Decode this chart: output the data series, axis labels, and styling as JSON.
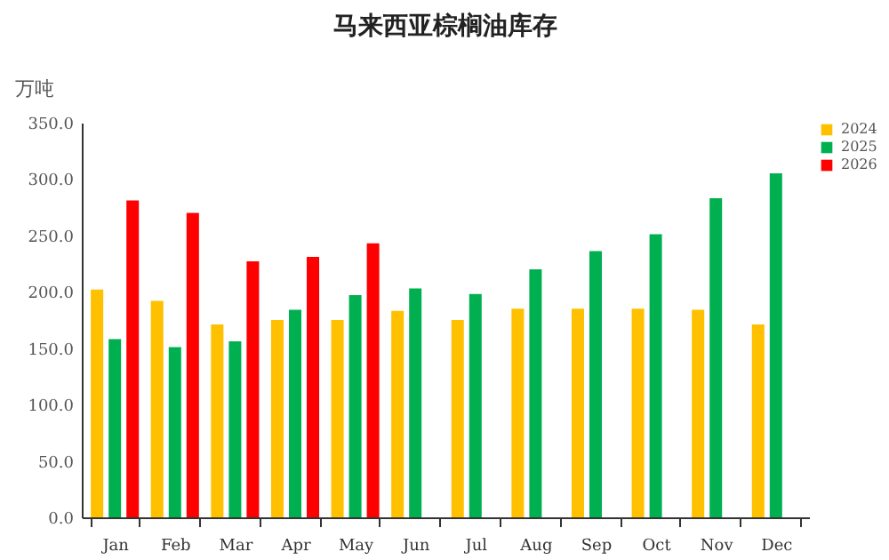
{
  "chart_data": {
    "type": "bar",
    "title": "马来西亚棕榈油库存",
    "ylabel": "万吨",
    "categories": [
      "Jan",
      "Feb",
      "Mar",
      "Apr",
      "May",
      "Jun",
      "Jul",
      "Aug",
      "Sep",
      "Oct",
      "Nov",
      "Dec"
    ],
    "series": [
      {
        "name": "2024",
        "color": "#ffc000",
        "values": [
          202,
          192,
          171,
          175,
          175,
          183,
          175,
          185,
          185,
          185,
          184,
          171
        ]
      },
      {
        "name": "2025",
        "color": "#00b050",
        "values": [
          158,
          151,
          156,
          184,
          197,
          203,
          198,
          220,
          236,
          251,
          283,
          305
        ]
      },
      {
        "name": "2026",
        "color": "#ff0000",
        "values": [
          281,
          270,
          227,
          231,
          243,
          null,
          null,
          null,
          null,
          null,
          null,
          null
        ]
      }
    ],
    "ylim": [
      0,
      350
    ],
    "yticks": [
      {
        "value": 0,
        "label": "0.0"
      },
      {
        "value": 50,
        "label": "50.0"
      },
      {
        "value": 100,
        "label": "100.0"
      },
      {
        "value": 150,
        "label": "150.0"
      },
      {
        "value": 200,
        "label": "200.0"
      },
      {
        "value": 250,
        "label": "250.0"
      },
      {
        "value": 300,
        "label": "300.0"
      },
      {
        "value": 350,
        "label": "350.0"
      }
    ],
    "grid": false,
    "legend": "right"
  }
}
